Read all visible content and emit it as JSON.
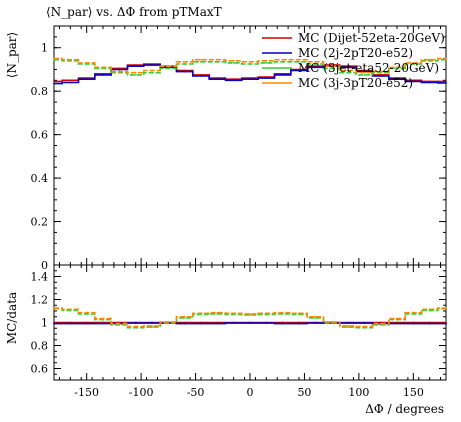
{
  "title": "⟨N_par⟩ vs. ΔΦ from pTMaxT",
  "chart_data": [
    {
      "type": "line",
      "panel": "main",
      "ylabel": "⟨N_par⟩",
      "xlim": [
        -180,
        180
      ],
      "ylim": [
        0,
        1.1
      ],
      "yticks": [
        "0",
        "0.2",
        "0.4",
        "0.6",
        "0.8",
        "1"
      ],
      "x": [
        -180,
        -165,
        -150,
        -135,
        -120,
        -105,
        -90,
        -75,
        -60,
        -45,
        -30,
        -15,
        0,
        15,
        30,
        45,
        60,
        75,
        90,
        105,
        120,
        135,
        150,
        165,
        180
      ],
      "series": [
        {
          "name": "MC (Dijet-52eta-20GeV)",
          "color": "#d40000",
          "values": [
            0.845,
            0.85,
            0.86,
            0.88,
            0.905,
            0.92,
            0.925,
            0.915,
            0.895,
            0.875,
            0.86,
            0.855,
            0.86,
            0.865,
            0.88,
            0.9,
            0.915,
            0.92,
            0.915,
            0.895,
            0.875,
            0.86,
            0.85,
            0.845,
            0.845
          ]
        },
        {
          "name": "MC (2j-2pT20-e52)",
          "color": "#0000cc",
          "values": [
            0.835,
            0.84,
            0.855,
            0.875,
            0.9,
            0.915,
            0.92,
            0.91,
            0.89,
            0.87,
            0.855,
            0.85,
            0.855,
            0.86,
            0.875,
            0.895,
            0.91,
            0.915,
            0.91,
            0.89,
            0.87,
            0.855,
            0.845,
            0.84,
            0.838
          ]
        },
        {
          "name": "MC (3jet-eta52-20GeV)",
          "color": "#33cc33",
          "values": [
            0.945,
            0.94,
            0.925,
            0.905,
            0.885,
            0.875,
            0.885,
            0.905,
            0.925,
            0.935,
            0.935,
            0.93,
            0.925,
            0.93,
            0.935,
            0.935,
            0.925,
            0.905,
            0.885,
            0.875,
            0.885,
            0.905,
            0.925,
            0.94,
            0.945
          ]
        },
        {
          "name": "MC (3j-3pT20-e52)",
          "color": "#ff8800",
          "values": [
            0.95,
            0.945,
            0.93,
            0.91,
            0.89,
            0.885,
            0.895,
            0.915,
            0.935,
            0.945,
            0.945,
            0.94,
            0.935,
            0.94,
            0.945,
            0.945,
            0.935,
            0.915,
            0.895,
            0.885,
            0.89,
            0.91,
            0.93,
            0.945,
            0.95
          ]
        }
      ]
    },
    {
      "type": "line",
      "panel": "ratio",
      "ylabel": "MC/data",
      "xlabel": "ΔΦ / degrees",
      "xlim": [
        -180,
        180
      ],
      "ylim": [
        0.5,
        1.5
      ],
      "yticks": [
        "0.6",
        "0.8",
        "1",
        "1.2",
        "1.4"
      ],
      "xticks": [
        "-150",
        "-100",
        "-50",
        "0",
        "50",
        "100",
        "150"
      ],
      "x": [
        -180,
        -165,
        -150,
        -135,
        -120,
        -105,
        -90,
        -75,
        -60,
        -45,
        -30,
        -15,
        0,
        15,
        30,
        45,
        60,
        75,
        90,
        105,
        120,
        135,
        150,
        165,
        180
      ],
      "series": [
        {
          "name": "MC (Dijet-52eta-20GeV)",
          "color": "#d40000",
          "values": [
            1.0,
            1.0,
            1.0,
            1.0,
            1.0,
            1.0,
            1.0,
            1.0,
            1.0,
            1.0,
            1.0,
            1.0,
            1.0,
            1.0,
            1.0,
            1.0,
            1.0,
            1.0,
            1.0,
            1.0,
            1.0,
            1.0,
            1.0,
            1.0,
            1.0
          ]
        },
        {
          "name": "MC (2j-2pT20-e52)",
          "color": "#0000cc",
          "values": [
            0.99,
            0.99,
            0.99,
            0.99,
            0.99,
            0.995,
            0.995,
            0.995,
            0.99,
            0.99,
            0.99,
            0.995,
            0.995,
            0.995,
            0.99,
            0.99,
            0.995,
            0.995,
            0.995,
            0.995,
            0.99,
            0.99,
            0.99,
            0.99,
            0.99
          ]
        },
        {
          "name": "MC (3jet-eta52-20GeV)",
          "color": "#33cc33",
          "values": [
            1.12,
            1.105,
            1.075,
            1.025,
            0.98,
            0.955,
            0.96,
            0.995,
            1.04,
            1.07,
            1.075,
            1.07,
            1.065,
            1.07,
            1.075,
            1.07,
            1.04,
            0.995,
            0.96,
            0.955,
            0.98,
            1.025,
            1.075,
            1.105,
            1.12
          ]
        },
        {
          "name": "MC (3j-3pT20-e52)",
          "color": "#ff8800",
          "values": [
            1.125,
            1.115,
            1.085,
            1.035,
            0.99,
            0.965,
            0.97,
            1.005,
            1.05,
            1.08,
            1.085,
            1.08,
            1.075,
            1.08,
            1.085,
            1.08,
            1.05,
            1.005,
            0.97,
            0.965,
            0.99,
            1.035,
            1.085,
            1.115,
            1.125
          ]
        }
      ]
    }
  ]
}
